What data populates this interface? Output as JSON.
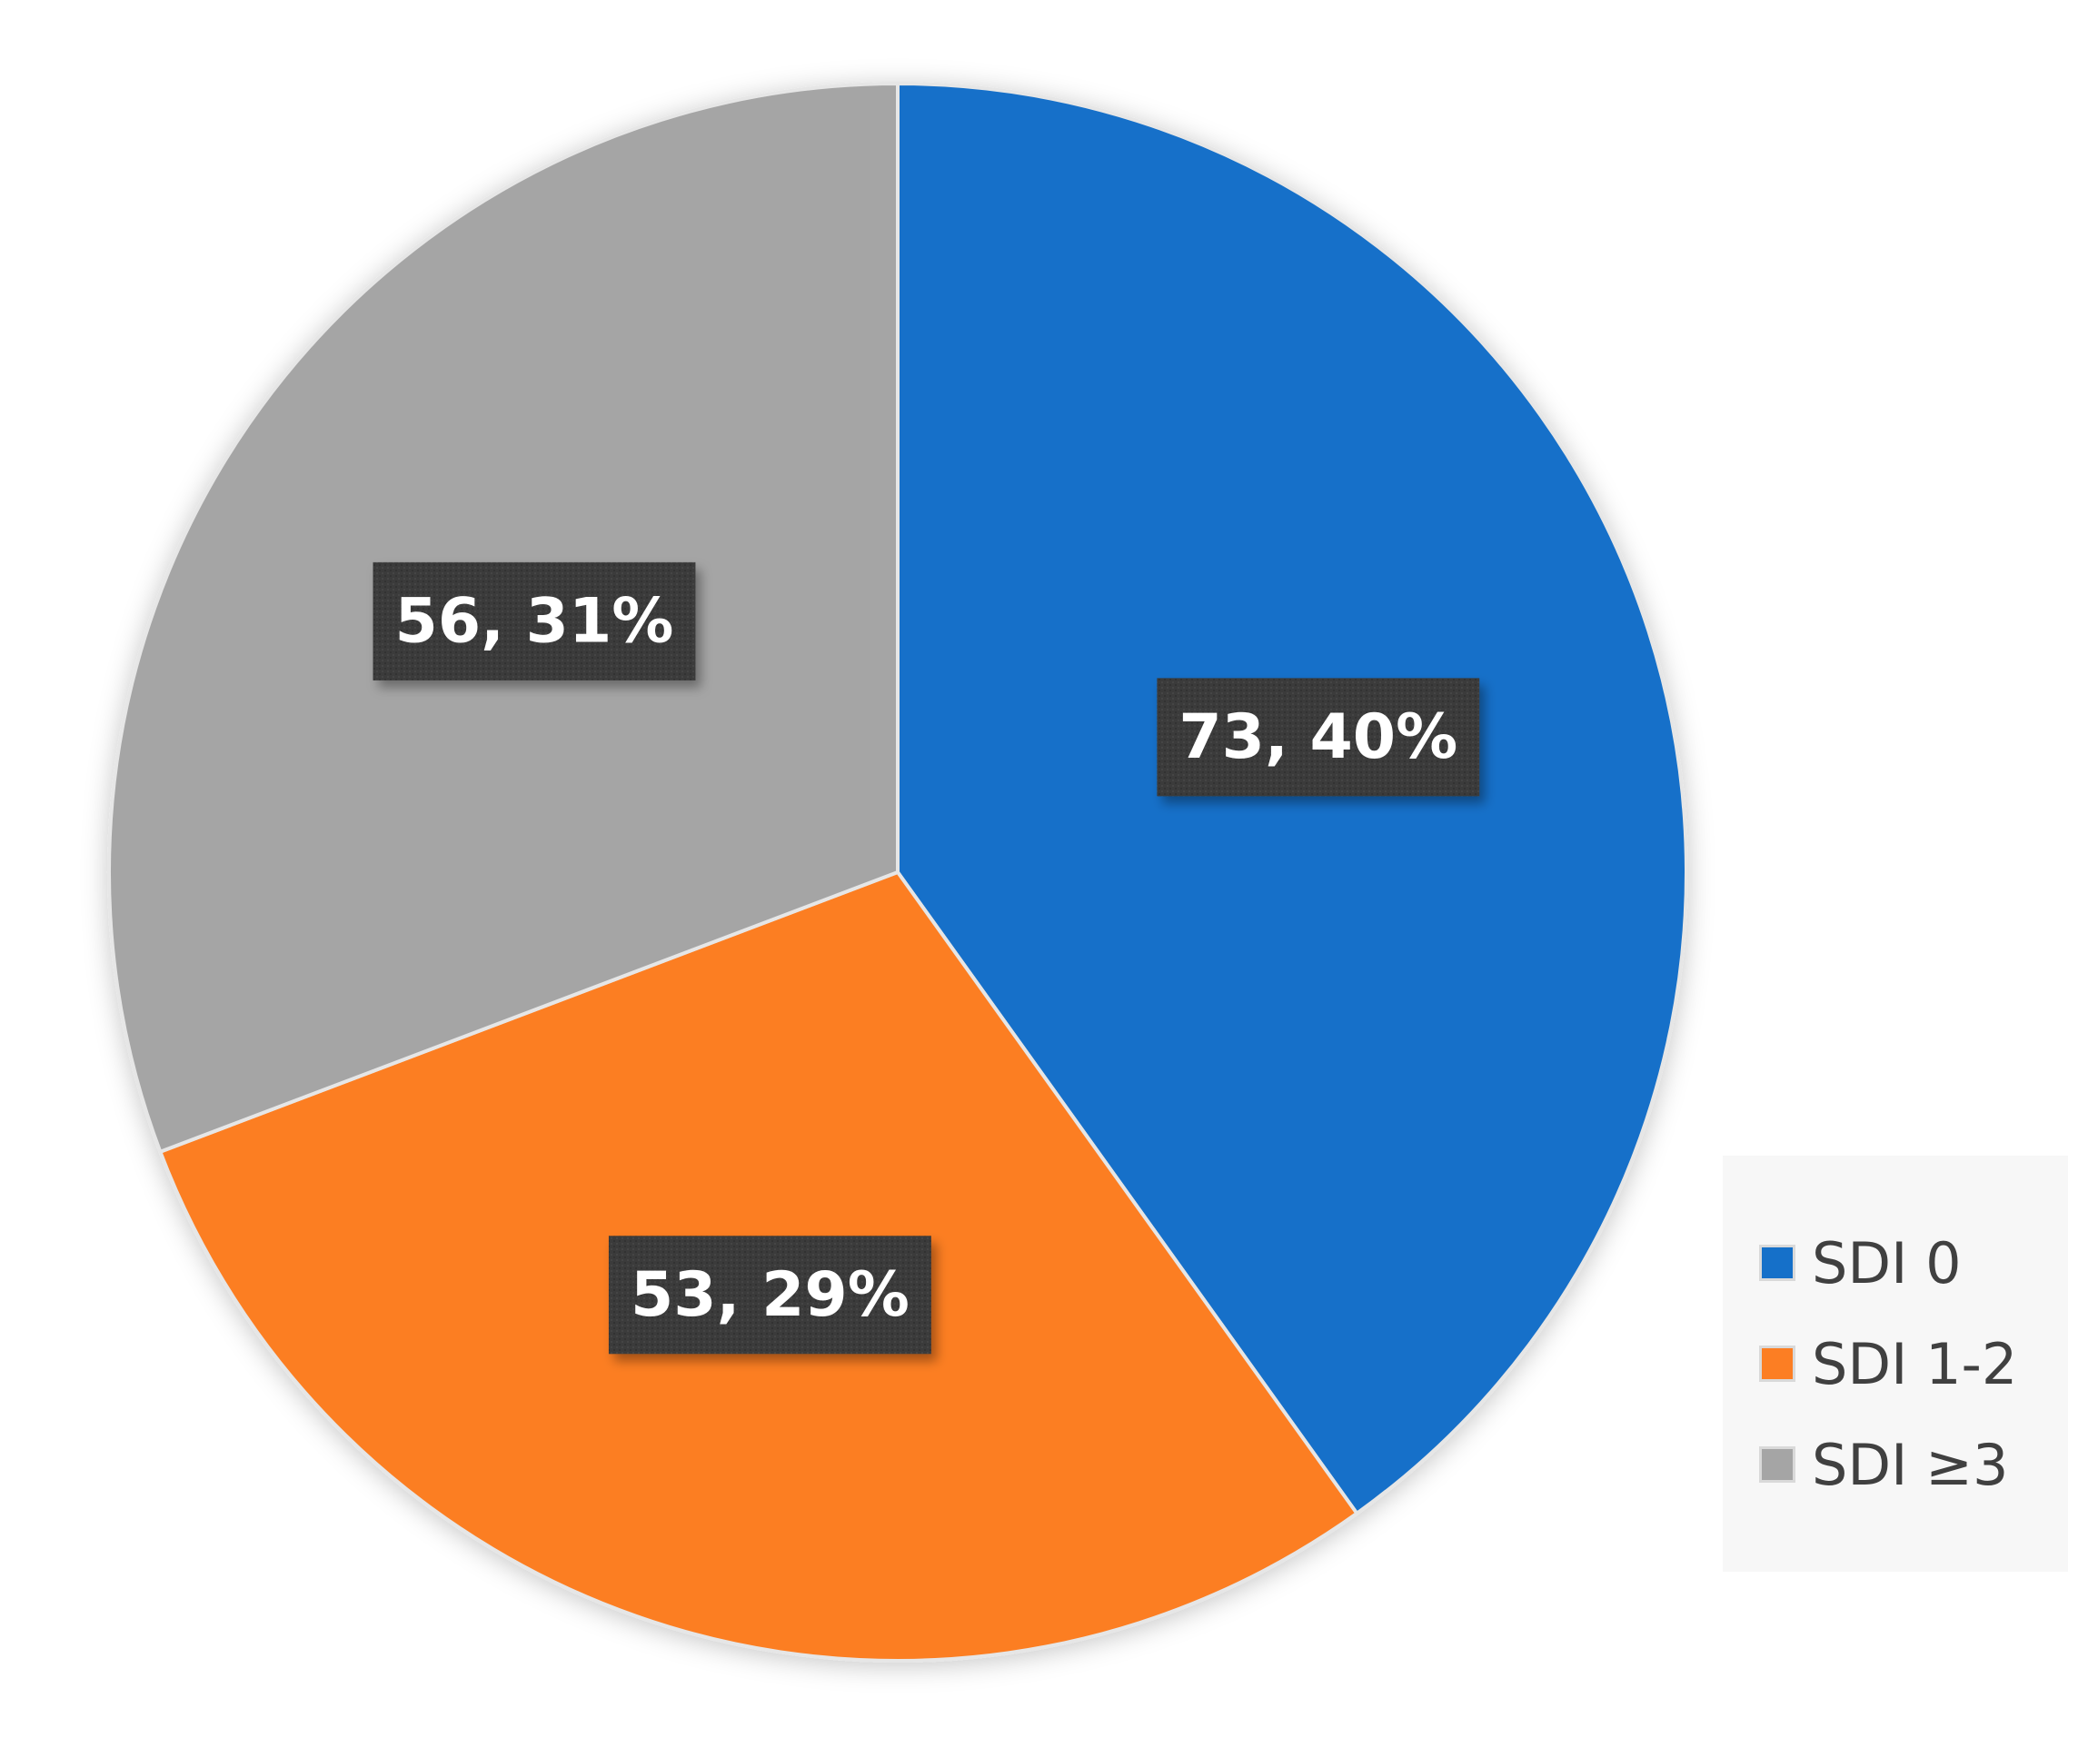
{
  "chart_data": {
    "type": "pie",
    "title": "",
    "start_angle_deg": 0,
    "direction": "clockwise",
    "legend_position": "bottom-right",
    "slices": [
      {
        "label": "SDI 0",
        "value": 73,
        "percent": 40,
        "data_label": "73, 40%",
        "color": "#1570c9"
      },
      {
        "label": "SDI 1-2",
        "value": 53,
        "percent": 29,
        "data_label": "53, 29%",
        "color": "#fc7e23"
      },
      {
        "label": "SDI ≥3",
        "value": 56,
        "percent": 31,
        "data_label": "56, 31%",
        "color": "#a5a5a5"
      }
    ]
  },
  "legend": {
    "items": [
      {
        "label": "SDI 0",
        "color": "#1570c9"
      },
      {
        "label": "SDI 1-2",
        "color": "#fc7e23"
      },
      {
        "label": "SDI ≥3",
        "color": "#a5a5a5"
      }
    ]
  },
  "colors": {
    "label_box": "#3c3c3c",
    "slice_border": "#e6e6e6"
  }
}
